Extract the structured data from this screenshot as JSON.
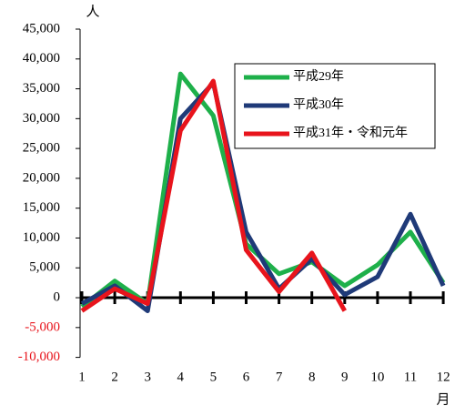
{
  "chart_data": {
    "type": "line",
    "y_unit": "人",
    "x_unit": "月",
    "categories": [
      "1",
      "2",
      "3",
      "4",
      "5",
      "6",
      "7",
      "8",
      "9",
      "10",
      "11",
      "12"
    ],
    "series": [
      {
        "name": "平成29年",
        "color": "#1eb04a",
        "values": [
          -1500,
          2800,
          -1000,
          37500,
          30500,
          9000,
          4000,
          6000,
          2000,
          5500,
          11000,
          2500
        ]
      },
      {
        "name": "平成30年",
        "color": "#1f3a78",
        "values": [
          -1000,
          2000,
          -2200,
          30000,
          36000,
          11000,
          1500,
          6500,
          500,
          3500,
          14000,
          2000
        ]
      },
      {
        "name": "平成31年・令和元年",
        "color": "#e8141c",
        "values": [
          -2200,
          1500,
          -1000,
          28000,
          36300,
          8000,
          1000,
          7500,
          -2200,
          null,
          null,
          null
        ]
      }
    ],
    "ylim": [
      -10000,
      45000
    ],
    "yticks": [
      {
        "value": -10000,
        "label": "-10,000"
      },
      {
        "value": -5000,
        "label": "-5,000"
      },
      0,
      {
        "value": 5000,
        "label": "5,000"
      },
      {
        "value": 10000,
        "label": "10,000"
      },
      {
        "value": 15000,
        "label": "15,000"
      },
      {
        "value": 20000,
        "label": "20,000"
      },
      {
        "value": 25000,
        "label": "25,000"
      },
      {
        "value": 30000,
        "label": "30,000"
      },
      {
        "value": 35000,
        "label": "35,000"
      },
      {
        "value": 40000,
        "label": "40,000"
      },
      {
        "value": 45000,
        "label": "45,000"
      }
    ],
    "negative_tick_color": "#e8141c",
    "legend": "upper-right"
  }
}
